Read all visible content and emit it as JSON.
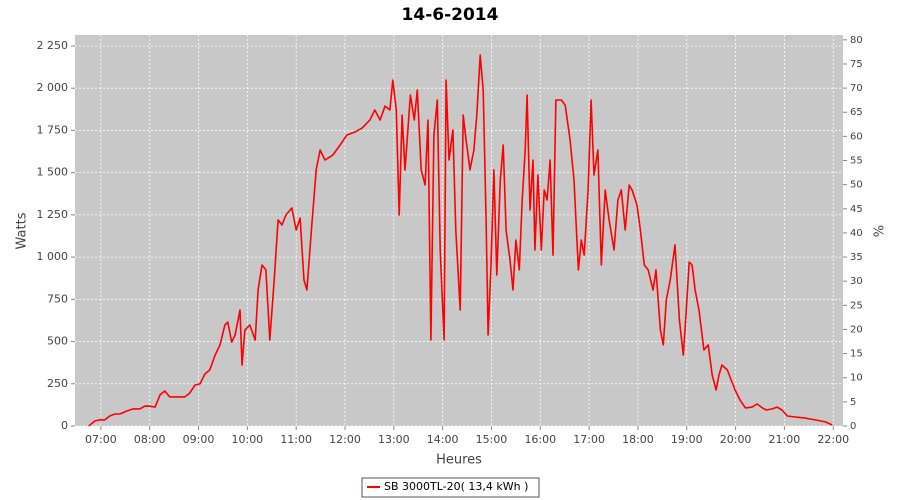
{
  "chart_data": {
    "type": "line",
    "title": "14-6-2014",
    "x_label": "Heures",
    "y_label": "Watts",
    "y2_label": "%",
    "xlim": [
      6.47,
      22.2
    ],
    "xticks": [
      {
        "value": 7,
        "label": "07:00"
      },
      {
        "value": 8,
        "label": "08:00"
      },
      {
        "value": 9,
        "label": "09:00"
      },
      {
        "value": 10,
        "label": "10:00"
      },
      {
        "value": 11,
        "label": "11:00"
      },
      {
        "value": 12,
        "label": "12:00"
      },
      {
        "value": 13,
        "label": "13:00"
      },
      {
        "value": 14,
        "label": "14:00"
      },
      {
        "value": 15,
        "label": "15:00"
      },
      {
        "value": 16,
        "label": "16:00"
      },
      {
        "value": 17,
        "label": "17:00"
      },
      {
        "value": 18,
        "label": "18:00"
      },
      {
        "value": 19,
        "label": "19:00"
      },
      {
        "value": 20,
        "label": "20:00"
      },
      {
        "value": 21,
        "label": "21:00"
      },
      {
        "value": 22,
        "label": "22:00"
      }
    ],
    "ylim": [
      0,
      2315
    ],
    "yticks": [
      0,
      250,
      500,
      750,
      {
        "value": 1000,
        "label": "1 000"
      },
      {
        "value": 1250,
        "label": "1 250"
      },
      {
        "value": 1500,
        "label": "1 500"
      },
      {
        "value": 1750,
        "label": "1 750"
      },
      {
        "value": 2000,
        "label": "2 000"
      },
      {
        "value": 2250,
        "label": "2 250"
      }
    ],
    "y2lim": [
      0,
      81
    ],
    "y2ticks": [
      0,
      5,
      10,
      15,
      20,
      25,
      30,
      35,
      40,
      45,
      50,
      55,
      60,
      65,
      70,
      75,
      80
    ],
    "grid": true,
    "legend": "bottom",
    "x": [
      6.75,
      6.88,
      6.98,
      7.08,
      7.18,
      7.29,
      7.39,
      7.53,
      7.66,
      7.8,
      7.9,
      8.0,
      8.11,
      8.21,
      8.31,
      8.41,
      8.62,
      8.72,
      8.82,
      8.93,
      9.03,
      9.13,
      9.23,
      9.34,
      9.44,
      9.54,
      9.6,
      9.68,
      9.75,
      9.85,
      9.89,
      9.95,
      10.05,
      10.16,
      10.22,
      10.3,
      10.38,
      10.46,
      10.55,
      10.63,
      10.71,
      10.79,
      10.91,
      11.0,
      11.08,
      11.16,
      11.22,
      11.32,
      11.41,
      11.49,
      11.59,
      11.75,
      11.9,
      12.04,
      12.2,
      12.35,
      12.51,
      12.61,
      12.72,
      12.82,
      12.92,
      12.98,
      13.05,
      13.11,
      13.17,
      13.23,
      13.34,
      13.42,
      13.48,
      13.56,
      13.64,
      13.7,
      13.76,
      13.82,
      13.89,
      13.95,
      14.03,
      14.07,
      14.13,
      14.21,
      14.27,
      14.36,
      14.42,
      14.48,
      14.56,
      14.64,
      14.7,
      14.77,
      14.83,
      14.89,
      14.93,
      14.99,
      15.05,
      15.11,
      15.18,
      15.24,
      15.3,
      15.38,
      15.44,
      15.5,
      15.57,
      15.63,
      15.69,
      15.73,
      15.79,
      15.85,
      15.89,
      15.95,
      16.02,
      16.08,
      16.14,
      16.2,
      16.26,
      16.32,
      16.43,
      16.51,
      16.61,
      16.69,
      16.78,
      16.84,
      16.9,
      16.98,
      17.04,
      17.1,
      17.18,
      17.25,
      17.33,
      17.41,
      17.51,
      17.59,
      17.66,
      17.74,
      17.82,
      17.88,
      17.98,
      18.05,
      18.13,
      18.21,
      18.31,
      18.37,
      18.46,
      18.52,
      18.58,
      18.66,
      18.76,
      18.85,
      18.93,
      18.99,
      19.05,
      19.11,
      19.17,
      19.25,
      19.35,
      19.44,
      19.52,
      19.6,
      19.66,
      19.72,
      19.83,
      19.91,
      19.99,
      20.09,
      20.2,
      20.34,
      20.44,
      20.55,
      20.63,
      20.75,
      20.85,
      20.95,
      21.06,
      21.22,
      21.43,
      21.63,
      21.84,
      21.98
    ],
    "series": [
      {
        "name": "SB 3000TL-20( 13,4 kWh )",
        "color": "#ff0000",
        "values": [
          0,
          30,
          36,
          36,
          59,
          71,
          71,
          89,
          101,
          101,
          118,
          118,
          112,
          184,
          207,
          172,
          172,
          172,
          195,
          243,
          249,
          308,
          332,
          420,
          480,
          598,
          615,
          497,
          539,
          687,
          361,
          568,
          598,
          509,
          805,
          953,
          924,
          509,
          864,
          1220,
          1190,
          1249,
          1291,
          1160,
          1231,
          864,
          805,
          1190,
          1516,
          1634,
          1575,
          1604,
          1664,
          1723,
          1740,
          1764,
          1812,
          1871,
          1812,
          1894,
          1871,
          2048,
          1871,
          1249,
          1841,
          1516,
          1960,
          1812,
          1989,
          1516,
          1427,
          1812,
          509,
          1723,
          1930,
          1042,
          509,
          2048,
          1575,
          1752,
          1160,
          687,
          1841,
          1693,
          1516,
          1634,
          1841,
          2196,
          1989,
          1220,
          539,
          953,
          1516,
          894,
          1456,
          1664,
          1160,
          983,
          805,
          1101,
          924,
          1338,
          1634,
          1960,
          1279,
          1575,
          1042,
          1486,
          1042,
          1397,
          1338,
          1575,
          1012,
          1930,
          1930,
          1900,
          1693,
          1456,
          924,
          1101,
          1012,
          1397,
          1930,
          1486,
          1634,
          953,
          1397,
          1220,
          1042,
          1338,
          1397,
          1160,
          1427,
          1397,
          1308,
          1160,
          953,
          924,
          805,
          924,
          568,
          480,
          746,
          864,
          1072,
          628,
          420,
          687,
          971,
          953,
          805,
          687,
          450,
          480,
          302,
          213,
          302,
          361,
          332,
          272,
          213,
          154,
          107,
          112,
          130,
          107,
          95,
          101,
          112,
          95,
          59,
          53,
          47,
          36,
          24,
          6
        ]
      }
    ]
  }
}
